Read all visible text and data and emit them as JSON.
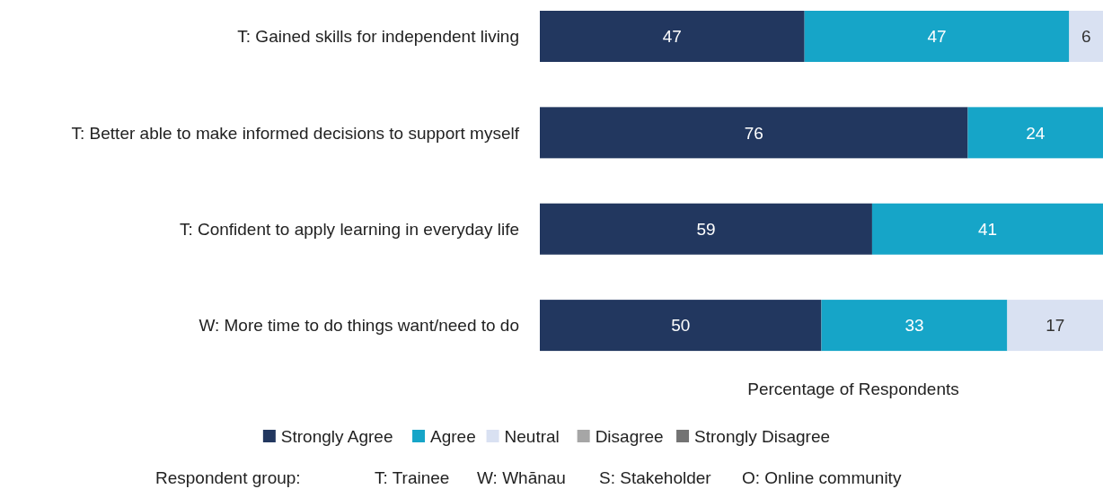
{
  "chart_data": {
    "type": "bar",
    "orientation": "horizontal",
    "stacked": true,
    "categories": [
      "T: Gained skills for independent living",
      "T: Better able to make informed decisions to support myself",
      "T: Confident to apply learning in everyday life",
      "W: More time to do things want/need to do"
    ],
    "series": [
      {
        "name": "Strongly Agree",
        "color": "#22375f",
        "values": [
          47,
          76,
          59,
          50
        ],
        "value_labels": [
          "47",
          "76",
          "59",
          "50"
        ]
      },
      {
        "name": "Agree",
        "color": "#16a5c8",
        "values": [
          47,
          24,
          41,
          33
        ],
        "value_labels": [
          "47",
          "24",
          "41",
          "33"
        ]
      },
      {
        "name": "Neutral",
        "color": "#d9e1f2",
        "values": [
          6,
          0,
          0,
          17
        ],
        "value_labels": [
          "6",
          null,
          null,
          "17"
        ]
      },
      {
        "name": "Disagree",
        "color": "#a6a6a6",
        "values": [
          0,
          0,
          0,
          0
        ],
        "value_labels": [
          null,
          null,
          null,
          null
        ]
      },
      {
        "name": "Strongly Disagree",
        "color": "#737373",
        "values": [
          0,
          0,
          0,
          0
        ],
        "value_labels": [
          null,
          null,
          null,
          null
        ]
      }
    ],
    "xlim": [
      0,
      100
    ],
    "tick_labels": "y",
    "legend": "bottom",
    "xlabel": "Percentage of Respondents",
    "annotations": [
      "Respondent group:",
      "T: Trainee",
      "W: Whānau",
      "S: Stakeholder",
      "O: Online community"
    ]
  }
}
